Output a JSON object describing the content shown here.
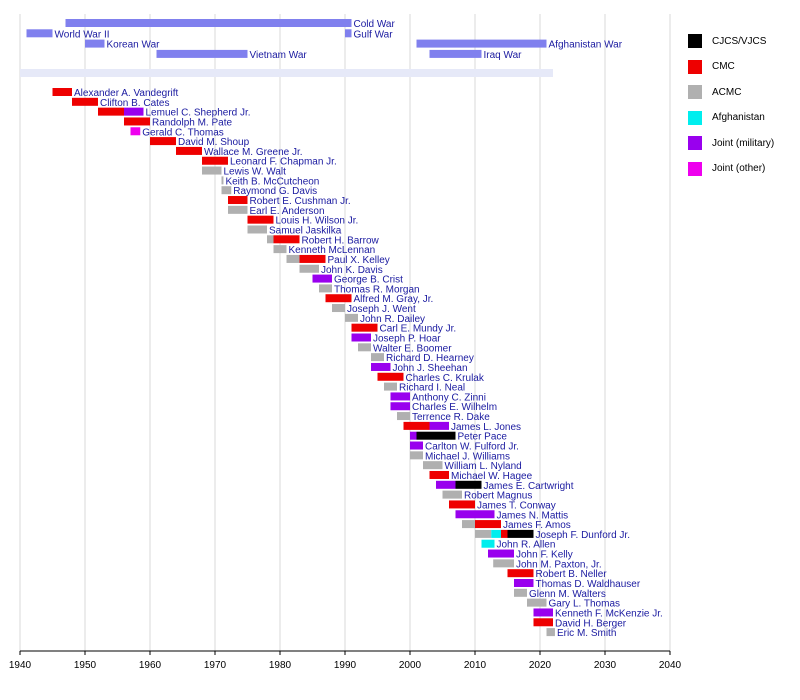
{
  "chart_data": {
    "type": "bar",
    "subtype": "timeline",
    "title": "",
    "xlabel": "",
    "ylabel": "",
    "xlim": [
      1940,
      2040
    ],
    "xticks": [
      1940,
      1950,
      1960,
      1970,
      1980,
      1990,
      2000,
      2010,
      2020,
      2030,
      2040
    ],
    "grid": true,
    "legend_position": "top-right",
    "legend": [
      {
        "key": "cjcs",
        "label": "CJCS/VJCS",
        "color": "#000000"
      },
      {
        "key": "cmc",
        "label": "CMC",
        "color": "#ee0000"
      },
      {
        "key": "acmc",
        "label": "ACMC",
        "color": "#b0b0b0"
      },
      {
        "key": "afghan",
        "label": "Afghanistan",
        "color": "#00eeee"
      },
      {
        "key": "jmil",
        "label": "Joint (military)",
        "color": "#9900ee"
      },
      {
        "key": "jother",
        "label": "Joint (other)",
        "color": "#ee00ee"
      }
    ],
    "wars": [
      {
        "name": "Cold War",
        "start": 1947,
        "end": 1991,
        "row": 0
      },
      {
        "name": "World War II",
        "start": 1941,
        "end": 1945,
        "row": 1
      },
      {
        "name": "Gulf War",
        "start": 1990,
        "end": 1991,
        "row": 1
      },
      {
        "name": "Korean War",
        "start": 1950,
        "end": 1953,
        "row": 2
      },
      {
        "name": "Afghanistan War",
        "start": 2001,
        "end": 2021,
        "row": 2
      },
      {
        "name": "Vietnam War",
        "start": 1961,
        "end": 1975,
        "row": 3
      },
      {
        "name": "Iraq War",
        "start": 2003,
        "end": 2011,
        "row": 3
      }
    ],
    "period_band": {
      "start": 1940,
      "end": 2022
    },
    "officers": [
      {
        "name": "Alexander A. Vandegrift",
        "segments": [
          {
            "start": 1945,
            "end": 1948,
            "role": "cmc"
          }
        ]
      },
      {
        "name": "Clifton B. Cates",
        "segments": [
          {
            "start": 1948,
            "end": 1952,
            "role": "cmc"
          }
        ]
      },
      {
        "name": "Lemuel C. Shepherd Jr.",
        "segments": [
          {
            "start": 1952,
            "end": 1956,
            "role": "cmc"
          },
          {
            "start": 1956,
            "end": 1959,
            "role": "jmil"
          }
        ]
      },
      {
        "name": "Randolph M. Pate",
        "segments": [
          {
            "start": 1956,
            "end": 1960,
            "role": "cmc"
          }
        ]
      },
      {
        "name": "Gerald C. Thomas",
        "segments": [
          {
            "start": 1957,
            "end": 1958.5,
            "role": "jother"
          }
        ]
      },
      {
        "name": "David M. Shoup",
        "segments": [
          {
            "start": 1960,
            "end": 1964,
            "role": "cmc"
          }
        ]
      },
      {
        "name": "Wallace M. Greene Jr.",
        "segments": [
          {
            "start": 1964,
            "end": 1968,
            "role": "cmc"
          }
        ]
      },
      {
        "name": "Leonard F. Chapman Jr.",
        "segments": [
          {
            "start": 1968,
            "end": 1972,
            "role": "cmc"
          }
        ]
      },
      {
        "name": "Lewis W. Walt",
        "segments": [
          {
            "start": 1968,
            "end": 1971,
            "role": "acmc"
          }
        ]
      },
      {
        "name": "Keith B. McCutcheon",
        "segments": [
          {
            "start": 1971,
            "end": 1971.3,
            "role": "acmc"
          }
        ]
      },
      {
        "name": "Raymond G. Davis",
        "segments": [
          {
            "start": 1971,
            "end": 1972.5,
            "role": "acmc"
          }
        ]
      },
      {
        "name": "Robert E. Cushman Jr.",
        "segments": [
          {
            "start": 1972,
            "end": 1975,
            "role": "cmc"
          }
        ]
      },
      {
        "name": "Earl E. Anderson",
        "segments": [
          {
            "start": 1972,
            "end": 1975,
            "role": "acmc"
          }
        ]
      },
      {
        "name": "Louis H. Wilson Jr.",
        "segments": [
          {
            "start": 1975,
            "end": 1979,
            "role": "cmc"
          }
        ]
      },
      {
        "name": "Samuel Jaskilka",
        "segments": [
          {
            "start": 1975,
            "end": 1978,
            "role": "acmc"
          }
        ]
      },
      {
        "name": "Robert H. Barrow",
        "segments": [
          {
            "start": 1978,
            "end": 1979,
            "role": "acmc"
          },
          {
            "start": 1979,
            "end": 1983,
            "role": "cmc"
          }
        ]
      },
      {
        "name": "Kenneth McLennan",
        "segments": [
          {
            "start": 1979,
            "end": 1981,
            "role": "acmc"
          }
        ]
      },
      {
        "name": "Paul X. Kelley",
        "segments": [
          {
            "start": 1981,
            "end": 1983,
            "role": "acmc"
          },
          {
            "start": 1983,
            "end": 1987,
            "role": "cmc"
          }
        ]
      },
      {
        "name": "John K. Davis",
        "segments": [
          {
            "start": 1983,
            "end": 1986,
            "role": "acmc"
          }
        ]
      },
      {
        "name": "George B. Crist",
        "segments": [
          {
            "start": 1985,
            "end": 1988,
            "role": "jmil"
          }
        ]
      },
      {
        "name": "Thomas R. Morgan",
        "segments": [
          {
            "start": 1986,
            "end": 1988,
            "role": "acmc"
          }
        ]
      },
      {
        "name": "Alfred M. Gray, Jr.",
        "segments": [
          {
            "start": 1987,
            "end": 1991,
            "role": "cmc"
          }
        ]
      },
      {
        "name": "Joseph J. Went",
        "segments": [
          {
            "start": 1988,
            "end": 1990,
            "role": "acmc"
          }
        ]
      },
      {
        "name": "John R. Dailey",
        "segments": [
          {
            "start": 1990,
            "end": 1992,
            "role": "acmc"
          }
        ]
      },
      {
        "name": "Carl E. Mundy Jr.",
        "segments": [
          {
            "start": 1991,
            "end": 1995,
            "role": "cmc"
          }
        ]
      },
      {
        "name": "Joseph P. Hoar",
        "segments": [
          {
            "start": 1991,
            "end": 1994,
            "role": "jmil"
          }
        ]
      },
      {
        "name": "Walter E. Boomer",
        "segments": [
          {
            "start": 1992,
            "end": 1994,
            "role": "acmc"
          }
        ]
      },
      {
        "name": "Richard D. Hearney",
        "segments": [
          {
            "start": 1994,
            "end": 1996,
            "role": "acmc"
          }
        ]
      },
      {
        "name": "John J. Sheehan",
        "segments": [
          {
            "start": 1994,
            "end": 1997,
            "role": "jmil"
          }
        ]
      },
      {
        "name": "Charles C. Krulak",
        "segments": [
          {
            "start": 1995,
            "end": 1999,
            "role": "cmc"
          }
        ]
      },
      {
        "name": "Richard I. Neal",
        "segments": [
          {
            "start": 1996,
            "end": 1998,
            "role": "acmc"
          }
        ]
      },
      {
        "name": "Anthony C. Zinni",
        "segments": [
          {
            "start": 1997,
            "end": 2000,
            "role": "jmil"
          }
        ]
      },
      {
        "name": "Charles E. Wilhelm",
        "segments": [
          {
            "start": 1997,
            "end": 2000,
            "role": "jmil"
          }
        ]
      },
      {
        "name": "Terrence R. Dake",
        "segments": [
          {
            "start": 1998,
            "end": 2000,
            "role": "acmc"
          }
        ]
      },
      {
        "name": "James L. Jones",
        "segments": [
          {
            "start": 1999,
            "end": 2003,
            "role": "cmc"
          },
          {
            "start": 2003,
            "end": 2006,
            "role": "jmil"
          }
        ]
      },
      {
        "name": "Peter Pace",
        "segments": [
          {
            "start": 2000,
            "end": 2001,
            "role": "jmil"
          },
          {
            "start": 2001,
            "end": 2007,
            "role": "cjcs"
          }
        ]
      },
      {
        "name": "Carlton W. Fulford Jr.",
        "segments": [
          {
            "start": 2000,
            "end": 2002,
            "role": "jmil"
          }
        ]
      },
      {
        "name": "Michael J. Williams",
        "segments": [
          {
            "start": 2000,
            "end": 2002,
            "role": "acmc"
          }
        ]
      },
      {
        "name": "William L. Nyland",
        "segments": [
          {
            "start": 2002,
            "end": 2005,
            "role": "acmc"
          }
        ]
      },
      {
        "name": "Michael W. Hagee",
        "segments": [
          {
            "start": 2003,
            "end": 2006,
            "role": "cmc"
          }
        ]
      },
      {
        "name": "James E. Cartwright",
        "segments": [
          {
            "start": 2004,
            "end": 2007,
            "role": "jmil"
          },
          {
            "start": 2007,
            "end": 2011,
            "role": "cjcs"
          }
        ]
      },
      {
        "name": "Robert Magnus",
        "segments": [
          {
            "start": 2005,
            "end": 2008,
            "role": "acmc"
          }
        ]
      },
      {
        "name": "James T. Conway",
        "segments": [
          {
            "start": 2006,
            "end": 2010,
            "role": "cmc"
          }
        ]
      },
      {
        "name": "James N. Mattis",
        "segments": [
          {
            "start": 2007,
            "end": 2013,
            "role": "jmil"
          }
        ]
      },
      {
        "name": "James F. Amos",
        "segments": [
          {
            "start": 2008,
            "end": 2010,
            "role": "acmc"
          },
          {
            "start": 2010,
            "end": 2014,
            "role": "cmc"
          }
        ]
      },
      {
        "name": "Joseph F. Dunford Jr.",
        "segments": [
          {
            "start": 2010,
            "end": 2012.5,
            "role": "acmc"
          },
          {
            "start": 2012.5,
            "end": 2014,
            "role": "afghan"
          },
          {
            "start": 2014,
            "end": 2015,
            "role": "cmc"
          },
          {
            "start": 2015,
            "end": 2019,
            "role": "cjcs"
          }
        ]
      },
      {
        "name": "John R. Allen",
        "segments": [
          {
            "start": 2011,
            "end": 2013,
            "role": "afghan"
          }
        ]
      },
      {
        "name": "John F. Kelly",
        "segments": [
          {
            "start": 2012,
            "end": 2016,
            "role": "jmil"
          }
        ]
      },
      {
        "name": "John M. Paxton, Jr.",
        "segments": [
          {
            "start": 2012.8,
            "end": 2016,
            "role": "acmc"
          }
        ]
      },
      {
        "name": "Robert B. Neller",
        "segments": [
          {
            "start": 2015,
            "end": 2019,
            "role": "cmc"
          }
        ]
      },
      {
        "name": "Thomas D. Waldhauser",
        "segments": [
          {
            "start": 2016,
            "end": 2019,
            "role": "jmil"
          }
        ]
      },
      {
        "name": "Glenn M. Walters",
        "segments": [
          {
            "start": 2016,
            "end": 2018,
            "role": "acmc"
          }
        ]
      },
      {
        "name": "Gary L. Thomas",
        "segments": [
          {
            "start": 2018,
            "end": 2021,
            "role": "acmc"
          }
        ]
      },
      {
        "name": "Kenneth F. McKenzie Jr.",
        "segments": [
          {
            "start": 2019,
            "end": 2022,
            "role": "jmil"
          }
        ]
      },
      {
        "name": "David H. Berger",
        "segments": [
          {
            "start": 2019,
            "end": 2022,
            "role": "cmc"
          }
        ]
      },
      {
        "name": "Eric M. Smith",
        "segments": [
          {
            "start": 2021,
            "end": 2022.3,
            "role": "acmc"
          }
        ]
      }
    ]
  },
  "colors": {
    "war_bar": "#8080ee",
    "period_band": "#e6e9f8",
    "grid": "#d8d8d8",
    "label": "#1a1aa0"
  }
}
